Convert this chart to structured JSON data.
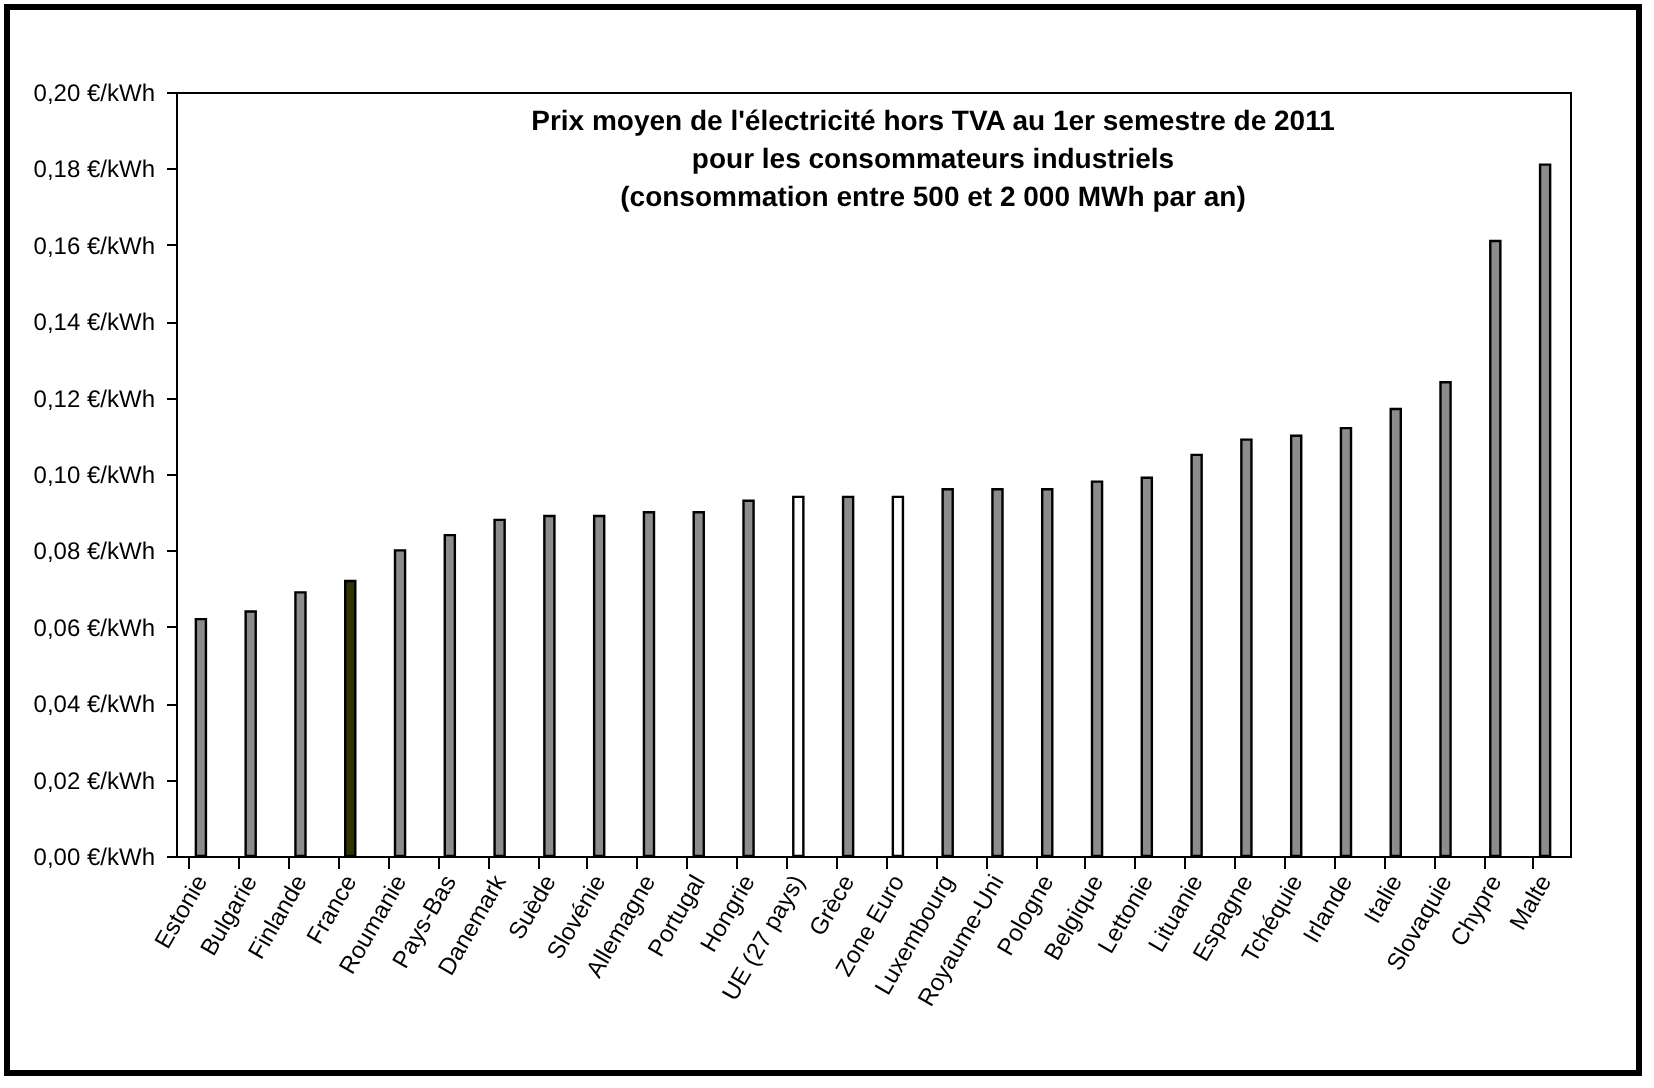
{
  "chart_data": {
    "type": "bar",
    "title": "Prix moyen de l'électricité hors TVA au 1er semestre de 2011\npour les consommateurs industriels\n(consommation entre 500 et 2 000 MWh par an)",
    "categories": [
      "Estonie",
      "Bulgarie",
      "Finlande",
      "France",
      "Roumanie",
      "Pays-Bas",
      "Danemark",
      "Suède",
      "Slovénie",
      "Allemagne",
      "Portugal",
      "Hongrie",
      "UE (27 pays)",
      "Grèce",
      "Zone Euro",
      "Luxembourg",
      "Royaume-Uni",
      "Pologne",
      "Belgique",
      "Lettonie",
      "Lituanie",
      "Espagne",
      "Tchéquie",
      "Irlande",
      "Italie",
      "Slovaquie",
      "Chypre",
      "Malte"
    ],
    "values": [
      0.062,
      0.064,
      0.069,
      0.072,
      0.08,
      0.084,
      0.088,
      0.089,
      0.089,
      0.09,
      0.09,
      0.093,
      0.094,
      0.094,
      0.094,
      0.096,
      0.096,
      0.096,
      0.098,
      0.099,
      0.105,
      0.109,
      0.11,
      0.112,
      0.117,
      0.124,
      0.161,
      0.181
    ],
    "colors": [
      "#8c8c8c",
      "#8c8c8c",
      "#8c8c8c",
      "#333300",
      "#8c8c8c",
      "#8c8c8c",
      "#8c8c8c",
      "#8c8c8c",
      "#8c8c8c",
      "#8c8c8c",
      "#8c8c8c",
      "#8c8c8c",
      "#ffffff",
      "#8c8c8c",
      "#ffffff",
      "#8c8c8c",
      "#8c8c8c",
      "#8c8c8c",
      "#8c8c8c",
      "#8c8c8c",
      "#8c8c8c",
      "#8c8c8c",
      "#8c8c8c",
      "#8c8c8c",
      "#8c8c8c",
      "#8c8c8c",
      "#8c8c8c",
      "#8c8c8c"
    ],
    "ylim": [
      0,
      0.2
    ],
    "yticks": [
      {
        "value": 0,
        "label": "0,00 €/kWh"
      },
      {
        "value": 0.02,
        "label": "0,02 €/kWh"
      },
      {
        "value": 0.04,
        "label": "0,04 €/kWh"
      },
      {
        "value": 0.06,
        "label": "0,06 €/kWh"
      },
      {
        "value": 0.08,
        "label": "0,08 €/kWh"
      },
      {
        "value": 0.1,
        "label": "0,10 €/kWh"
      },
      {
        "value": 0.12,
        "label": "0,12 €/kWh"
      },
      {
        "value": 0.14,
        "label": "0,14 €/kWh"
      },
      {
        "value": 0.16,
        "label": "0,16 €/kWh"
      },
      {
        "value": 0.18,
        "label": "0,18 €/kWh"
      },
      {
        "value": 0.2,
        "label": "0,20 €/kWh"
      }
    ]
  }
}
